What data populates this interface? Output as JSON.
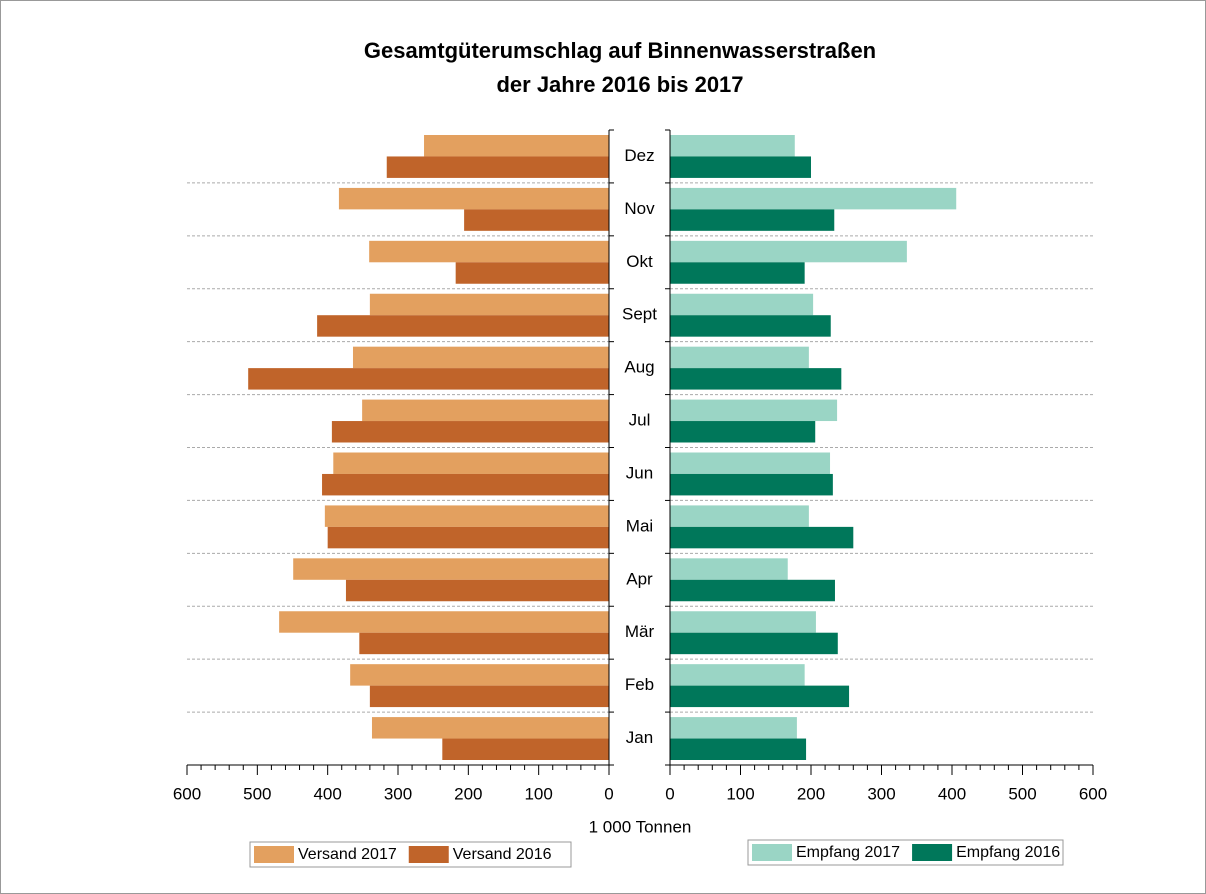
{
  "chart_data": {
    "type": "bar",
    "orientation": "horizontal",
    "title": [
      "Gesamtgüterumschlag auf Binnenwasserstraßen",
      "der Jahre 2016 bis 2017"
    ],
    "x_label": "1 000 Tonnen",
    "categories": [
      "Jan",
      "Feb",
      "Mär",
      "Apr",
      "Mai",
      "Jun",
      "Jul",
      "Aug",
      "Sept",
      "Okt",
      "Nov",
      "Dez"
    ],
    "grid": true,
    "panels": [
      {
        "x_reversed": true,
        "xlim": [
          0,
          600
        ],
        "xticks": [
          0,
          100,
          200,
          300,
          400,
          500,
          600
        ],
        "series": [
          {
            "name": "Versand 2017",
            "color": "#e3a05f",
            "values": [
              337,
              368,
              469,
              449,
              404,
              392,
              351,
              364,
              340,
              341,
              384,
              263
            ]
          },
          {
            "name": "Versand 2016",
            "color": "#c0642a",
            "values": [
              237,
              340,
              355,
              374,
              400,
              408,
              394,
              513,
              415,
              218,
              206,
              316
            ]
          }
        ]
      },
      {
        "x_reversed": false,
        "xlim": [
          0,
          600
        ],
        "xticks": [
          0,
          100,
          200,
          300,
          400,
          500,
          600
        ],
        "series": [
          {
            "name": "Empfang 2017",
            "color": "#9ad5c5",
            "values": [
              180,
              191,
              207,
              167,
              197,
              227,
              237,
              197,
              203,
              336,
              406,
              177
            ]
          },
          {
            "name": "Empfang 2016",
            "color": "#00775a",
            "values": [
              193,
              254,
              238,
              234,
              260,
              231,
              206,
              243,
              228,
              191,
              233,
              200
            ]
          }
        ]
      }
    ]
  }
}
